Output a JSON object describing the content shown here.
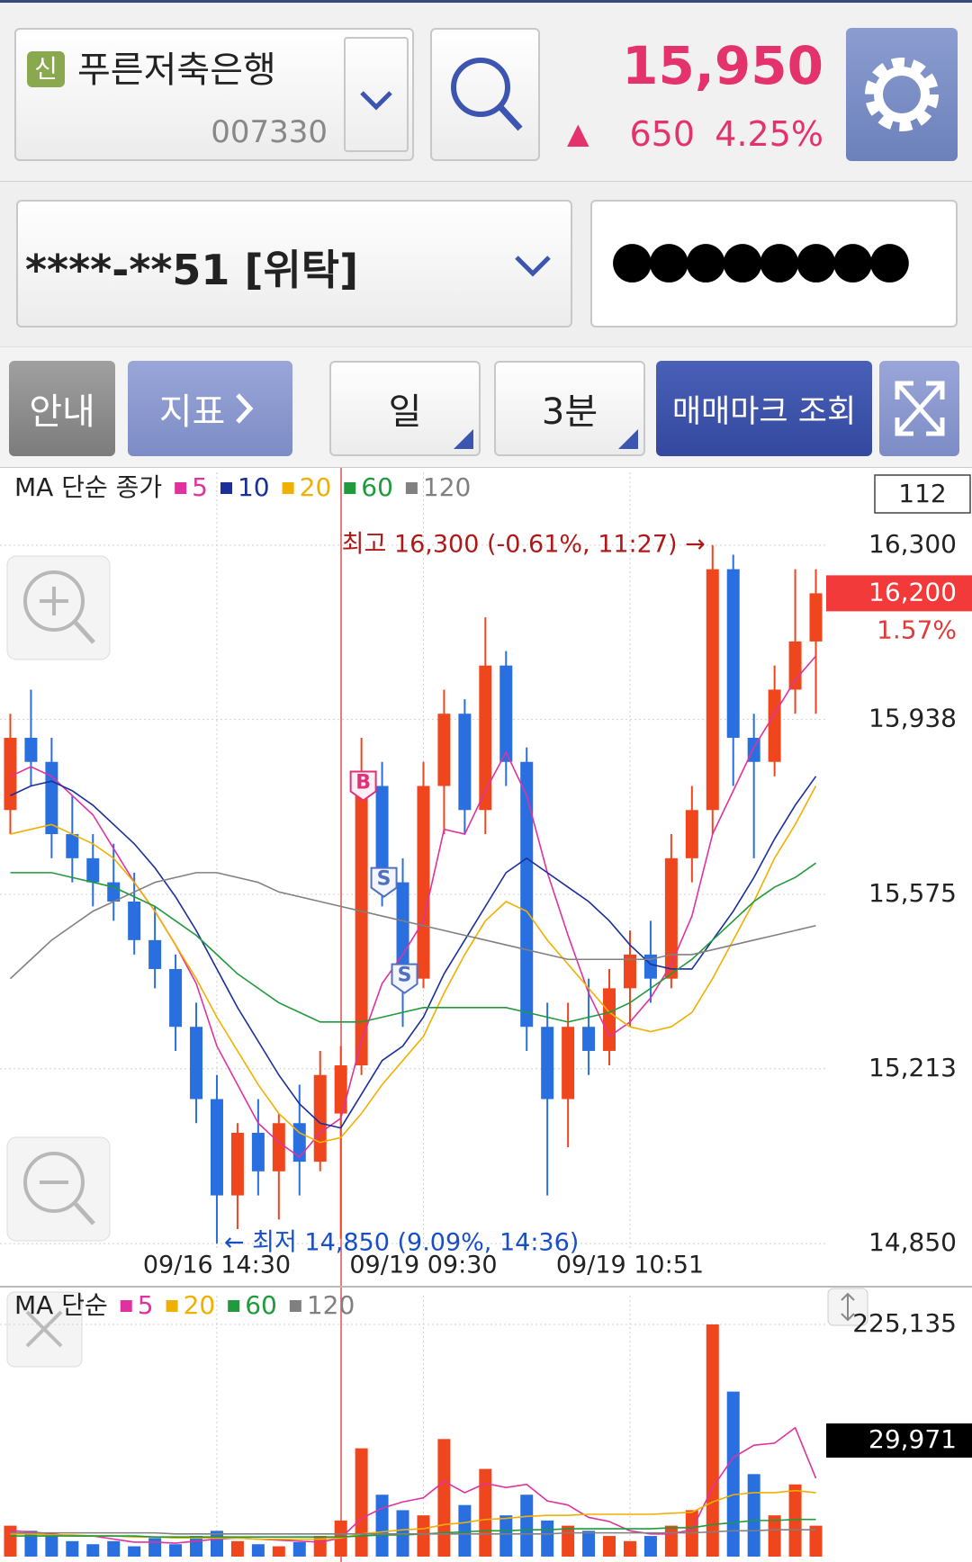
{
  "header": {
    "badge": "신",
    "name": "푸른저축은행",
    "code": "007330",
    "price": "15,950",
    "arrow": "▲",
    "change": "650",
    "change_pct": "4.25%"
  },
  "account": {
    "number": "****-**51 [위탁]",
    "password": "●●●●●●●●"
  },
  "toolbar": {
    "guide": "안내",
    "indicator": "지표",
    "period": "일",
    "interval": "3분",
    "trade_marks": "매매마크 조회"
  },
  "chart_data": [
    {
      "type": "candlestick",
      "legend_title": "MA 단순 종가",
      "count": "112",
      "up_color": "#f0461e",
      "down_color": "#2a6fe0",
      "grid": true,
      "categories": [
        null,
        null,
        null,
        null,
        null,
        null,
        null,
        null,
        null,
        null,
        "09/16 14:30",
        null,
        null,
        null,
        null,
        null,
        null,
        null,
        null,
        null,
        "09/19 09:30",
        null,
        null,
        null,
        null,
        null,
        null,
        null,
        null,
        null,
        "09/19 10:51",
        null,
        null,
        null,
        null,
        null,
        null,
        null,
        null,
        null
      ],
      "candles": [
        {
          "open": 15750,
          "high": 15950,
          "low": 15700,
          "close": 15900
        },
        {
          "open": 15900,
          "high": 16000,
          "low": 15800,
          "close": 15850
        },
        {
          "open": 15850,
          "high": 15900,
          "low": 15650,
          "close": 15700
        },
        {
          "open": 15700,
          "high": 15780,
          "low": 15600,
          "close": 15650
        },
        {
          "open": 15650,
          "high": 15700,
          "low": 15550,
          "close": 15600
        },
        {
          "open": 15600,
          "high": 15680,
          "low": 15520,
          "close": 15560
        },
        {
          "open": 15560,
          "high": 15620,
          "low": 15450,
          "close": 15480
        },
        {
          "open": 15480,
          "high": 15550,
          "low": 15380,
          "close": 15420
        },
        {
          "open": 15420,
          "high": 15450,
          "low": 15250,
          "close": 15300
        },
        {
          "open": 15300,
          "high": 15350,
          "low": 15100,
          "close": 15150
        },
        {
          "open": 15150,
          "high": 15200,
          "low": 14850,
          "close": 14950
        },
        {
          "open": 14950,
          "high": 15100,
          "low": 14880,
          "close": 15080
        },
        {
          "open": 15080,
          "high": 15150,
          "low": 14950,
          "close": 15000
        },
        {
          "open": 15000,
          "high": 15120,
          "low": 14900,
          "close": 15100
        },
        {
          "open": 15100,
          "high": 15180,
          "low": 14950,
          "close": 15020
        },
        {
          "open": 15020,
          "high": 15250,
          "low": 15000,
          "close": 15200
        },
        {
          "open": 15120,
          "high": 15260,
          "low": 14860,
          "close": 15220
        },
        {
          "open": 15220,
          "high": 15900,
          "low": 15200,
          "close": 15800,
          "mark": "B"
        },
        {
          "open": 15800,
          "high": 15850,
          "low": 15550,
          "close": 15600,
          "mark": "S"
        },
        {
          "open": 15600,
          "high": 15650,
          "low": 15300,
          "close": 15400,
          "mark": "S"
        },
        {
          "open": 15400,
          "high": 15850,
          "low": 15380,
          "close": 15800
        },
        {
          "open": 15800,
          "high": 16000,
          "low": 15700,
          "close": 15950
        },
        {
          "open": 15950,
          "high": 15980,
          "low": 15700,
          "close": 15750
        },
        {
          "open": 15750,
          "high": 16150,
          "low": 15700,
          "close": 16050
        },
        {
          "open": 16050,
          "high": 16080,
          "low": 15800,
          "close": 15850
        },
        {
          "open": 15850,
          "high": 15880,
          "low": 15250,
          "close": 15300
        },
        {
          "open": 15300,
          "high": 15350,
          "low": 14950,
          "close": 15150
        },
        {
          "open": 15150,
          "high": 15350,
          "low": 15050,
          "close": 15300
        },
        {
          "open": 15300,
          "high": 15400,
          "low": 15200,
          "close": 15250
        },
        {
          "open": 15250,
          "high": 15420,
          "low": 15220,
          "close": 15380
        },
        {
          "open": 15380,
          "high": 15500,
          "low": 15300,
          "close": 15450
        },
        {
          "open": 15450,
          "high": 15520,
          "low": 15350,
          "close": 15400
        },
        {
          "open": 15400,
          "high": 15700,
          "low": 15380,
          "close": 15650
        },
        {
          "open": 15650,
          "high": 15800,
          "low": 15600,
          "close": 15750
        },
        {
          "open": 15750,
          "high": 16300,
          "low": 15700,
          "close": 16250
        },
        {
          "open": 16250,
          "high": 16280,
          "low": 15800,
          "close": 15900
        },
        {
          "open": 15900,
          "high": 15950,
          "low": 15650,
          "close": 15850
        },
        {
          "open": 15850,
          "high": 16050,
          "low": 15820,
          "close": 16000
        },
        {
          "open": 16000,
          "high": 16250,
          "low": 15950,
          "close": 16100
        },
        {
          "open": 16100,
          "high": 16250,
          "low": 15950,
          "close": 16200
        }
      ],
      "series": [
        {
          "name": "5",
          "color": "#e0329e",
          "values": [
            15820,
            15840,
            15820,
            15780,
            15740,
            15670,
            15600,
            15540,
            15470,
            15390,
            15260,
            15180,
            15100,
            15060,
            15030,
            15080,
            15110,
            15270,
            15390,
            15450,
            15520,
            15710,
            15700,
            15790,
            15870,
            15780,
            15620,
            15490,
            15370,
            15280,
            15310,
            15360,
            15430,
            15530,
            15700,
            15790,
            15880,
            15950,
            16020,
            16070
          ]
        },
        {
          "name": "10",
          "color": "#1a2f9c",
          "values": [
            15780,
            15800,
            15810,
            15790,
            15760,
            15720,
            15680,
            15630,
            15570,
            15500,
            15420,
            15340,
            15270,
            15200,
            15140,
            15100,
            15090,
            15160,
            15230,
            15260,
            15320,
            15410,
            15480,
            15550,
            15620,
            15650,
            15620,
            15590,
            15560,
            15520,
            15470,
            15430,
            15420,
            15420,
            15480,
            15540,
            15610,
            15690,
            15760,
            15820
          ]
        },
        {
          "name": "20",
          "color": "#f0b000",
          "values": [
            15700,
            15710,
            15720,
            15700,
            15680,
            15650,
            15600,
            15540,
            15470,
            15400,
            15320,
            15250,
            15180,
            15120,
            15080,
            15060,
            15070,
            15120,
            15180,
            15230,
            15280,
            15370,
            15450,
            15520,
            15560,
            15540,
            15480,
            15430,
            15380,
            15330,
            15300,
            15290,
            15300,
            15330,
            15400,
            15480,
            15560,
            15650,
            15720,
            15800
          ]
        },
        {
          "name": "60",
          "color": "#1f9a3c",
          "values": [
            15620,
            15620,
            15620,
            15610,
            15600,
            15590,
            15570,
            15550,
            15520,
            15490,
            15450,
            15410,
            15380,
            15350,
            15330,
            15310,
            15310,
            15310,
            15320,
            15330,
            15340,
            15340,
            15340,
            15340,
            15340,
            15330,
            15320,
            15310,
            15320,
            15330,
            15350,
            15380,
            15410,
            15440,
            15480,
            15520,
            15560,
            15590,
            15610,
            15640
          ]
        },
        {
          "name": "120",
          "color": "#808080",
          "values": [
            15400,
            15440,
            15480,
            15510,
            15540,
            15560,
            15580,
            15600,
            15610,
            15620,
            15620,
            15610,
            15600,
            15580,
            15570,
            15560,
            15550,
            15540,
            15530,
            15520,
            15510,
            15500,
            15490,
            15480,
            15470,
            15460,
            15450,
            15440,
            15440,
            15440,
            15440,
            15440,
            15450,
            15450,
            15460,
            15470,
            15480,
            15490,
            15500,
            15510
          ]
        }
      ],
      "ylim": [
        14839,
        16451
      ],
      "yticks": [
        {
          "value": 14850,
          "label": "14,850"
        },
        {
          "value": 15213,
          "label": "15,213"
        },
        {
          "value": 15575,
          "label": "15,575"
        },
        {
          "value": 15938,
          "label": "15,938"
        },
        {
          "value": 16300,
          "label": "16,300"
        }
      ],
      "current": {
        "value": 16200,
        "label": "16,200"
      },
      "current_change": "1.57%",
      "max": {
        "value": 16300,
        "label": "최고 16,300 (-0.61%, 11:27) →"
      },
      "min": {
        "value": 14850,
        "label": "← 최저 14,850 (9.09%, 14:36)"
      }
    },
    {
      "type": "bar",
      "legend_title": "MA 단순",
      "values": [
        30000,
        25000,
        20000,
        15000,
        12000,
        15000,
        10000,
        18000,
        12000,
        20000,
        25000,
        15000,
        12000,
        10000,
        14000,
        20000,
        35000,
        105000,
        60000,
        45000,
        40000,
        114000,
        50000,
        85000,
        40000,
        60000,
        35000,
        30000,
        25000,
        20000,
        15000,
        20000,
        30000,
        45000,
        225135,
        160000,
        80000,
        40000,
        70000,
        29971
      ],
      "series": [
        {
          "name": "5",
          "color": "#e0329e",
          "values": [
            25000,
            24000,
            22000,
            20000,
            20000,
            17000,
            14000,
            14000,
            13000,
            15000,
            17000,
            18000,
            17000,
            16000,
            15000,
            14000,
            18000,
            37000,
            47000,
            53000,
            57000,
            73000,
            62000,
            71000,
            67000,
            70000,
            54000,
            50000,
            38000,
            34000,
            25000,
            22000,
            22000,
            26000,
            67000,
            96000,
            108000,
            110000,
            125000,
            76000
          ]
        },
        {
          "name": "20",
          "color": "#f0b000",
          "values": [
            22000,
            22000,
            21000,
            21000,
            20000,
            20000,
            19000,
            19000,
            18000,
            18000,
            18000,
            18000,
            17000,
            17000,
            17000,
            17000,
            18000,
            22000,
            24000,
            26000,
            27000,
            31000,
            33000,
            36000,
            37000,
            39000,
            40000,
            40000,
            41000,
            41000,
            41000,
            41000,
            42000,
            43000,
            53000,
            60000,
            62000,
            62000,
            64000,
            62000
          ]
        },
        {
          "name": "60",
          "color": "#1f9a3c",
          "values": [
            20000,
            20000,
            20000,
            20000,
            20000,
            20000,
            20000,
            19000,
            19000,
            19000,
            19000,
            19000,
            19000,
            19000,
            19000,
            19000,
            19000,
            20000,
            21000,
            21000,
            22000,
            23000,
            24000,
            25000,
            25000,
            26000,
            26000,
            27000,
            27000,
            27000,
            27000,
            27000,
            28000,
            28000,
            31000,
            33000,
            35000,
            35000,
            36000,
            36000
          ]
        },
        {
          "name": "120",
          "color": "#808080",
          "values": [
            23000,
            23000,
            23000,
            23000,
            23000,
            23000,
            23000,
            23000,
            22000,
            22000,
            22000,
            22000,
            22000,
            22000,
            22000,
            22000,
            22000,
            22000,
            22000,
            22000,
            22000,
            22000,
            22000,
            22000,
            22000,
            22000,
            22000,
            23000,
            23000,
            23000,
            23000,
            23000,
            23000,
            23000,
            24000,
            25000,
            25000,
            26000,
            26000,
            26000
          ]
        }
      ],
      "ylim": [
        0,
        253000
      ],
      "yticks": [
        {
          "value": 225135,
          "label": "225,135"
        }
      ],
      "current_label": "29,971"
    }
  ]
}
